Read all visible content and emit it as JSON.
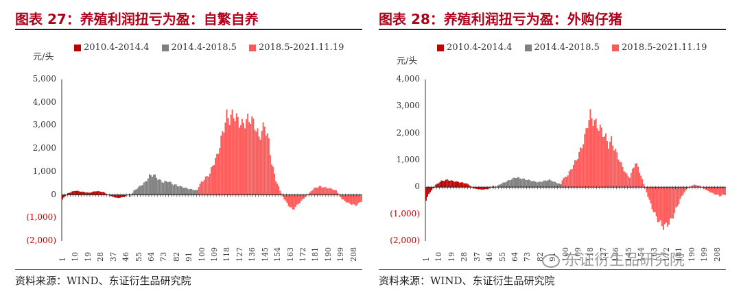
{
  "charts": [
    {
      "title": "图表 27：养殖利润扭亏为盈：自繁自养",
      "source": "资料来源：WIND、东证衍生品研究院"
    },
    {
      "title": "图表 28：养殖利润扭亏为盈：外购仔猪",
      "source": "资料来源：WIND、东证衍生品研究院"
    }
  ],
  "watermark": "东证衍生品研究院",
  "colors": {
    "s1": "#c00000",
    "s2": "#808080",
    "s3": "#ff5a5a",
    "title": "#b0001a",
    "neg_tick": "#c00000"
  },
  "chart_data": [
    {
      "type": "bar",
      "ylabel": "元/头",
      "ylim": [
        -2000,
        5000
      ],
      "yticks": [
        "5,000",
        "4,000",
        "3,000",
        "2,000",
        "1,000",
        "0",
        "(1,000)",
        "(2,000)"
      ],
      "xticks": [
        "1",
        "10",
        "19",
        "28",
        "37",
        "46",
        "55",
        "64",
        "73",
        "82",
        "91",
        "100",
        "109",
        "118",
        "127",
        "136",
        "145",
        "154",
        "163",
        "172",
        "181",
        "190",
        "199",
        "208"
      ],
      "x_count": 214,
      "series": [
        {
          "name": "2010.4-2014.4",
          "range": [
            1,
            49
          ],
          "profile": [
            [
              1,
              -200
            ],
            [
              5,
              80
            ],
            [
              10,
              200
            ],
            [
              15,
              150
            ],
            [
              20,
              100
            ],
            [
              25,
              180
            ],
            [
              30,
              140
            ],
            [
              35,
              -50
            ],
            [
              40,
              -150
            ],
            [
              45,
              -100
            ],
            [
              49,
              50
            ]
          ]
        },
        {
          "name": "2014.4-2018.5",
          "range": [
            49,
            98
          ],
          "profile": [
            [
              49,
              -100
            ],
            [
              52,
              200
            ],
            [
              56,
              400
            ],
            [
              60,
              600
            ],
            [
              63,
              900
            ],
            [
              66,
              950
            ],
            [
              70,
              700
            ],
            [
              73,
              600
            ],
            [
              76,
              650
            ],
            [
              80,
              500
            ],
            [
              85,
              400
            ],
            [
              90,
              300
            ],
            [
              94,
              250
            ],
            [
              98,
              200
            ]
          ]
        },
        {
          "name": "2018.5-2021.11.19",
          "range": [
            98,
            214
          ],
          "profile": [
            [
              98,
              400
            ],
            [
              100,
              600
            ],
            [
              103,
              800
            ],
            [
              106,
              1000
            ],
            [
              108,
              1400
            ],
            [
              111,
              1800
            ],
            [
              114,
              2600
            ],
            [
              116,
              3200
            ],
            [
              118,
              3700
            ],
            [
              120,
              3600
            ],
            [
              123,
              3800
            ],
            [
              126,
              3500
            ],
            [
              129,
              3300
            ],
            [
              132,
              3500
            ],
            [
              135,
              3600
            ],
            [
              138,
              3300
            ],
            [
              141,
              2700
            ],
            [
              143,
              3000
            ],
            [
              145,
              3300
            ],
            [
              148,
              2500
            ],
            [
              150,
              1500
            ],
            [
              153,
              700
            ],
            [
              156,
              200
            ],
            [
              159,
              -200
            ],
            [
              162,
              -500
            ],
            [
              165,
              -700
            ],
            [
              168,
              -500
            ],
            [
              171,
              -300
            ],
            [
              174,
              -100
            ],
            [
              177,
              100
            ],
            [
              180,
              300
            ],
            [
              184,
              400
            ],
            [
              188,
              350
            ],
            [
              192,
              300
            ],
            [
              196,
              200
            ],
            [
              200,
              -200
            ],
            [
              205,
              -400
            ],
            [
              210,
              -500
            ],
            [
              214,
              -300
            ]
          ]
        }
      ]
    },
    {
      "type": "bar",
      "ylabel": "元/头",
      "ylim": [
        -2000,
        4000
      ],
      "yticks": [
        "4,000",
        "3,000",
        "2,000",
        "1,000",
        "0",
        "(1,000)",
        "(2,000)"
      ],
      "xticks": [
        "1",
        "10",
        "19",
        "28",
        "37",
        "46",
        "55",
        "64",
        "73",
        "82",
        "91",
        "100",
        "109",
        "118",
        "127",
        "136",
        "145",
        "154",
        "163",
        "172",
        "181",
        "190",
        "199",
        "208"
      ],
      "x_count": 214,
      "series": [
        {
          "name": "2010.4-2014.4",
          "range": [
            1,
            49
          ],
          "profile": [
            [
              1,
              -500
            ],
            [
              4,
              -200
            ],
            [
              8,
              100
            ],
            [
              12,
              250
            ],
            [
              16,
              300
            ],
            [
              20,
              250
            ],
            [
              25,
              200
            ],
            [
              30,
              150
            ],
            [
              35,
              -50
            ],
            [
              40,
              -100
            ],
            [
              45,
              -80
            ],
            [
              49,
              50
            ]
          ]
        },
        {
          "name": "2014.4-2018.5",
          "range": [
            49,
            98
          ],
          "profile": [
            [
              49,
              -50
            ],
            [
              53,
              100
            ],
            [
              57,
              200
            ],
            [
              61,
              300
            ],
            [
              65,
              400
            ],
            [
              69,
              350
            ],
            [
              73,
              300
            ],
            [
              77,
              250
            ],
            [
              81,
              200
            ],
            [
              85,
              250
            ],
            [
              89,
              300
            ],
            [
              93,
              200
            ],
            [
              98,
              100
            ]
          ]
        },
        {
          "name": "2018.5-2021.11.19",
          "range": [
            98,
            214
          ],
          "profile": [
            [
              98,
              300
            ],
            [
              102,
              500
            ],
            [
              105,
              800
            ],
            [
              108,
              1100
            ],
            [
              111,
              1500
            ],
            [
              114,
              2000
            ],
            [
              116,
              2600
            ],
            [
              118,
              2900
            ],
            [
              120,
              2700
            ],
            [
              123,
              2500
            ],
            [
              126,
              2300
            ],
            [
              129,
              2000
            ],
            [
              131,
              1700
            ],
            [
              133,
              1900
            ],
            [
              135,
              1600
            ],
            [
              138,
              1200
            ],
            [
              141,
              800
            ],
            [
              144,
              500
            ],
            [
              146,
              400
            ],
            [
              148,
              700
            ],
            [
              150,
              1000
            ],
            [
              152,
              800
            ],
            [
              155,
              300
            ],
            [
              158,
              -200
            ],
            [
              161,
              -700
            ],
            [
              164,
              -1100
            ],
            [
              167,
              -1400
            ],
            [
              170,
              -1600
            ],
            [
              173,
              -1500
            ],
            [
              176,
              -1300
            ],
            [
              179,
              -900
            ],
            [
              182,
              -500
            ],
            [
              185,
              -200
            ],
            [
              188,
              0
            ],
            [
              192,
              100
            ],
            [
              196,
              50
            ],
            [
              200,
              -100
            ],
            [
              205,
              -250
            ],
            [
              210,
              -350
            ],
            [
              214,
              -300
            ]
          ]
        }
      ]
    }
  ]
}
